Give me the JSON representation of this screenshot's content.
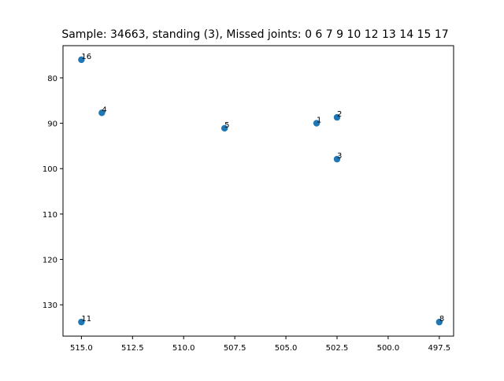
{
  "chart_data": {
    "type": "scatter",
    "title": "Sample: 34663, standing (3), Missed joints: 0  6  7  9  10  12  13  14  15  17",
    "xlabel": "",
    "ylabel": "",
    "x_axis_inverted": true,
    "y_axis_inverted": true,
    "xlim": [
      515.9,
      496.8
    ],
    "ylim": [
      136.9,
      72.9
    ],
    "xticks": [
      515.0,
      512.5,
      510.0,
      507.5,
      505.0,
      502.5,
      500.0,
      497.5
    ],
    "xtick_labels": [
      "515.0",
      "512.5",
      "510.0",
      "507.5",
      "505.0",
      "502.5",
      "500.0",
      "497.5"
    ],
    "yticks": [
      80,
      90,
      100,
      110,
      120,
      130
    ],
    "ytick_labels": [
      "80",
      "90",
      "100",
      "110",
      "120",
      "130"
    ],
    "grid": false,
    "marker_color": "#1f77b4",
    "points": [
      {
        "label": "16",
        "x": 515.0,
        "y": 76.0
      },
      {
        "label": "4",
        "x": 514.0,
        "y": 87.7
      },
      {
        "label": "5",
        "x": 508.0,
        "y": 91.1
      },
      {
        "label": "1",
        "x": 503.5,
        "y": 90.0
      },
      {
        "label": "2",
        "x": 502.5,
        "y": 88.7
      },
      {
        "label": "3",
        "x": 502.5,
        "y": 97.9
      },
      {
        "label": "11",
        "x": 515.0,
        "y": 133.8
      },
      {
        "label": "8",
        "x": 497.5,
        "y": 133.8
      }
    ]
  }
}
